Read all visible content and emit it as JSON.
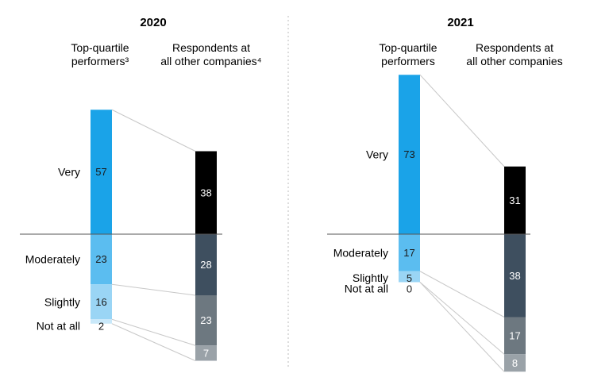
{
  "chart_data": {
    "type": "bar",
    "subtype": "stacked-slope",
    "categories": [
      "Very",
      "Moderately",
      "Slightly",
      "Not at all"
    ],
    "panels": [
      {
        "year": "2020",
        "columns": [
          {
            "header": [
              "Top-quartile",
              "performers³"
            ],
            "values": [
              57,
              23,
              16,
              2
            ],
            "colors": [
              "#1aa3e8",
              "#5bbdf0",
              "#9ad5f5",
              "#c9e8f9"
            ]
          },
          {
            "header": [
              "Respondents at",
              "all other companies⁴"
            ],
            "values": [
              38,
              28,
              23,
              7
            ],
            "colors": [
              "#000000",
              "#3e4f5f",
              "#6d7880",
              "#9aa2a8"
            ]
          }
        ]
      },
      {
        "year": "2021",
        "columns": [
          {
            "header": [
              "Top-quartile",
              "performers"
            ],
            "values": [
              73,
              17,
              5,
              0
            ],
            "colors": [
              "#1aa3e8",
              "#5bbdf0",
              "#9ad5f5",
              "#c9e8f9"
            ]
          },
          {
            "header": [
              "Respondents at",
              "all other companies"
            ],
            "values": [
              31,
              38,
              17,
              8
            ],
            "colors": [
              "#000000",
              "#3e4f5f",
              "#6d7880",
              "#9aa2a8"
            ]
          }
        ]
      }
    ]
  }
}
